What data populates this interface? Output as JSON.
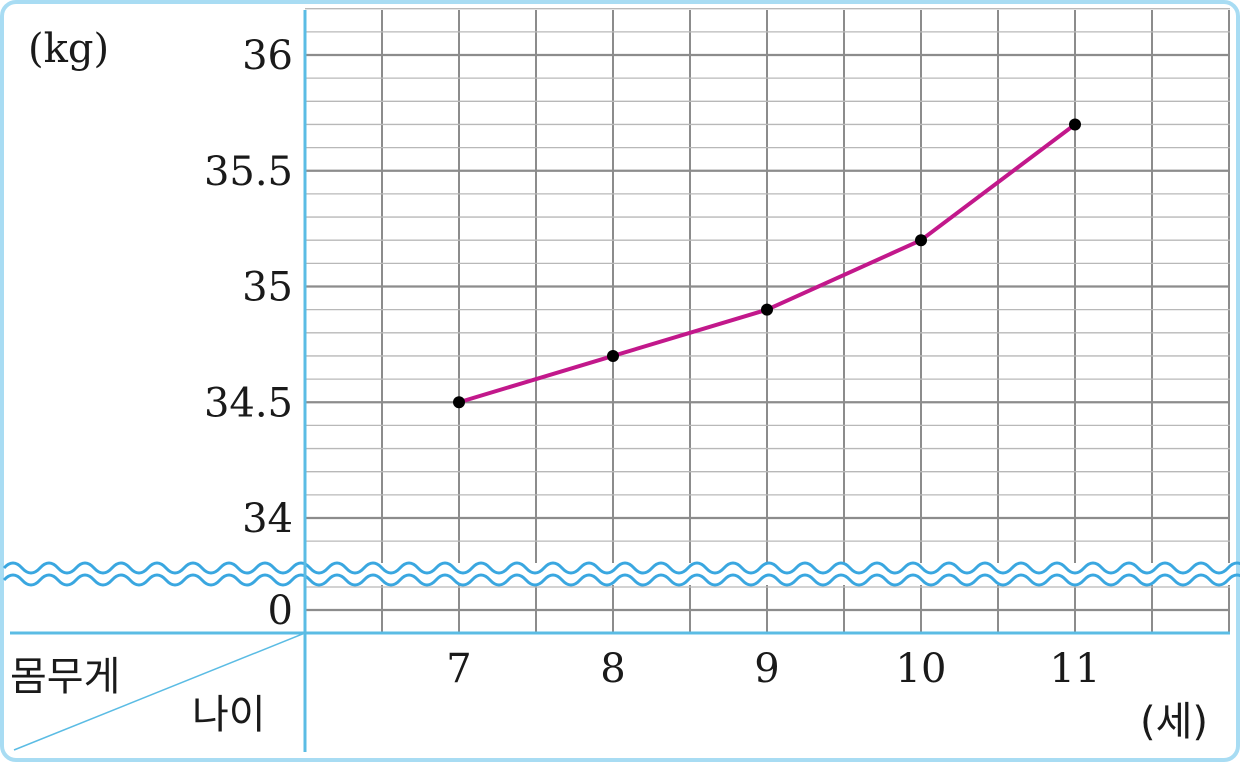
{
  "chart_data": {
    "type": "line",
    "title": "",
    "y_unit": "(kg)",
    "x_unit": "(세)",
    "header_row_label": "몸무게",
    "header_col_label": "나이",
    "x": [
      7,
      8,
      9,
      10,
      11
    ],
    "x_tick_labels": [
      "7",
      "8",
      "9",
      "10",
      "11"
    ],
    "y_tick_labels": [
      "36",
      "35.5",
      "35",
      "34.5",
      "34",
      "0"
    ],
    "y_ticks": [
      36,
      35.5,
      35,
      34.5,
      34
    ],
    "ylim": [
      33.8,
      36.2
    ],
    "y_axis_break": true,
    "grid": true,
    "series": [
      {
        "values": [
          34.5,
          34.7,
          34.9,
          35.2,
          35.7
        ]
      }
    ],
    "colors": {
      "line": "#c2188b",
      "point": "#000000",
      "axis": "#5bbce4",
      "grid_major": "#8c8c8c",
      "grid_minor": "#b8b8b8",
      "break_wave": "#3aa7e0"
    }
  }
}
